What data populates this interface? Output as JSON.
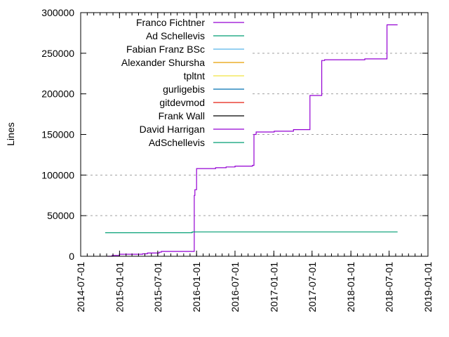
{
  "chart_data": {
    "type": "line",
    "style": "steps",
    "title": "",
    "xlabel": "",
    "ylabel": "Lines",
    "xlim": [
      "2014-07-01",
      "2019-01-01"
    ],
    "ylim": [
      0,
      300000
    ],
    "x_ticks": [
      "2014-07-01",
      "2015-01-01",
      "2015-07-01",
      "2016-01-01",
      "2016-07-01",
      "2017-01-01",
      "2017-07-01",
      "2018-01-01",
      "2018-07-01",
      "2019-01-01"
    ],
    "y_ticks": [
      0,
      50000,
      100000,
      150000,
      200000,
      250000,
      300000
    ],
    "y_tick_labels": [
      "0",
      "50000",
      "100000",
      "150000",
      "200000",
      "250000",
      "300000"
    ],
    "grid": {
      "x": false,
      "y": true
    },
    "legend_position": "top-left",
    "series": [
      {
        "name": "Franco Fichtner",
        "color": "#9400d3",
        "points": [
          [
            "2014-11-04",
            0
          ],
          [
            "2014-11-27",
            1000
          ],
          [
            "2015-01-01",
            2500
          ],
          [
            "2015-04-20",
            3000
          ],
          [
            "2015-05-13",
            4000
          ],
          [
            "2015-07-08",
            5000
          ],
          [
            "2015-07-18",
            6000
          ],
          [
            "2015-12-18",
            6000
          ],
          [
            "2015-12-21",
            75000
          ],
          [
            "2015-12-24",
            82000
          ],
          [
            "2016-01-01",
            108000
          ],
          [
            "2016-03-31",
            109000
          ],
          [
            "2016-05-20",
            110000
          ],
          [
            "2016-07-01",
            111000
          ],
          [
            "2016-09-22",
            112000
          ],
          [
            "2016-09-29",
            150000
          ],
          [
            "2016-10-09",
            153000
          ],
          [
            "2017-01-03",
            154000
          ],
          [
            "2017-04-04",
            156000
          ],
          [
            "2017-06-21",
            198000
          ],
          [
            "2017-08-16",
            241000
          ],
          [
            "2017-08-29",
            242000
          ],
          [
            "2018-03-08",
            243000
          ],
          [
            "2018-06-21",
            285000
          ],
          [
            "2018-08-10",
            285000
          ]
        ]
      },
      {
        "name": "Ad Schellevis",
        "color": "#009e73",
        "points": [
          [
            "2014-10-25",
            29000
          ],
          [
            "2015-12-11",
            30000
          ],
          [
            "2018-08-10",
            30000
          ]
        ]
      },
      {
        "name": "Fabian Franz BSc",
        "color": "#56b4e9",
        "points": []
      },
      {
        "name": "Alexander Shursha",
        "color": "#e69f00",
        "points": []
      },
      {
        "name": "tpltnt",
        "color": "#f0e442",
        "points": []
      },
      {
        "name": "gurligebis",
        "color": "#0072b2",
        "points": []
      },
      {
        "name": "gitdevmod",
        "color": "#e51e10",
        "points": []
      },
      {
        "name": "Frank Wall",
        "color": "#000000",
        "points": []
      },
      {
        "name": "David Harrigan",
        "color": "#9400d3",
        "points": []
      },
      {
        "name": "AdSchellevis",
        "color": "#009e73",
        "points": []
      }
    ]
  }
}
